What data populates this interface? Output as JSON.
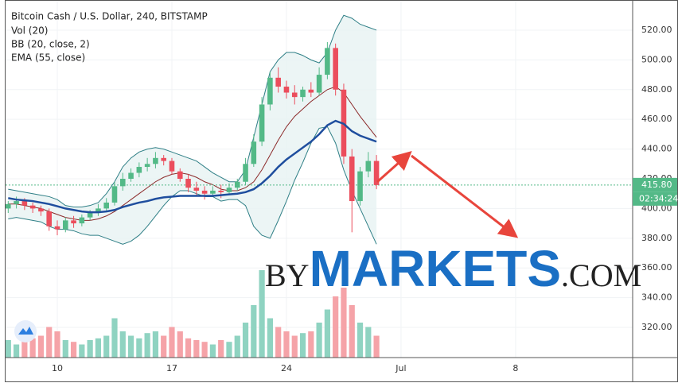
{
  "chart_data": {
    "type": "candlestick",
    "title": "Bitcoin Cash / U.S. Dollar, 240, BITSTAMP",
    "x": [
      7.0,
      7.5,
      8.0,
      8.5,
      9.0,
      9.5,
      10.0,
      10.5,
      11.0,
      11.5,
      12.0,
      12.5,
      13.0,
      13.5,
      14.0,
      14.5,
      15.0,
      15.5,
      16.0,
      16.5,
      17.0,
      17.5,
      18.0,
      18.5,
      19.0,
      19.5,
      20.0,
      20.5,
      21.0,
      21.5,
      22.0,
      22.5,
      23.0,
      23.5,
      24.0,
      24.5,
      25.0,
      25.5,
      26.0,
      26.5,
      27.0,
      27.5,
      28.0,
      28.5,
      29.0,
      29.5
    ],
    "open": [
      400,
      403,
      405,
      402,
      400,
      398,
      388,
      386,
      392,
      390,
      394,
      397,
      400,
      404,
      415,
      420,
      424,
      428,
      430,
      434,
      432,
      425,
      420,
      414,
      412,
      410,
      412,
      411,
      414,
      418,
      430,
      445,
      470,
      488,
      482,
      478,
      475,
      480,
      478,
      490,
      508,
      480,
      435,
      405,
      425,
      432
    ],
    "high": [
      405,
      408,
      407,
      404,
      402,
      400,
      392,
      394,
      395,
      396,
      399,
      403,
      407,
      418,
      424,
      427,
      431,
      434,
      438,
      436,
      434,
      427,
      423,
      418,
      415,
      415,
      416,
      417,
      420,
      434,
      450,
      475,
      492,
      495,
      486,
      483,
      482,
      485,
      495,
      512,
      511,
      484,
      440,
      428,
      438,
      436
    ],
    "low": [
      397,
      400,
      399,
      397,
      395,
      385,
      382,
      384,
      387,
      388,
      392,
      395,
      398,
      402,
      412,
      418,
      421,
      425,
      427,
      429,
      423,
      418,
      411,
      408,
      406,
      408,
      407,
      410,
      412,
      416,
      428,
      442,
      466,
      478,
      474,
      470,
      472,
      475,
      476,
      487,
      476,
      430,
      384,
      402,
      421,
      413
    ],
    "close": [
      403,
      405,
      402,
      400,
      398,
      388,
      386,
      392,
      390,
      394,
      397,
      400,
      404,
      415,
      420,
      424,
      428,
      430,
      434,
      432,
      425,
      420,
      414,
      412,
      410,
      412,
      411,
      414,
      418,
      430,
      445,
      470,
      488,
      482,
      478,
      475,
      480,
      478,
      490,
      508,
      480,
      435,
      405,
      425,
      432,
      415.8
    ],
    "up_color": "#53b987",
    "down_color": "#eb4d5c",
    "volume": {
      "label": "Vol (20)",
      "up_color": "#8fd3c1",
      "down_color": "#f5a3a8",
      "values": [
        20,
        15,
        18,
        22,
        25,
        35,
        30,
        20,
        18,
        15,
        20,
        22,
        25,
        45,
        30,
        25,
        22,
        28,
        30,
        25,
        35,
        30,
        22,
        20,
        18,
        15,
        20,
        18,
        25,
        40,
        60,
        100,
        45,
        35,
        30,
        25,
        28,
        30,
        40,
        55,
        70,
        80,
        60,
        40,
        35,
        25
      ]
    },
    "bb": {
      "label": "BB (20, close, 2)",
      "basis_color": "#8c2a2a",
      "band_color": "#2f7f86",
      "fill_color": "#e7f3f3",
      "basis": [
        403,
        403,
        402,
        401,
        400,
        398,
        396,
        394,
        393,
        392,
        392,
        393,
        395,
        398,
        402,
        406,
        410,
        414,
        418,
        421,
        423,
        424,
        423,
        421,
        418,
        416,
        413,
        412,
        412,
        414,
        418,
        426,
        436,
        446,
        455,
        462,
        467,
        472,
        476,
        480,
        482,
        478,
        470,
        462,
        455,
        448
      ],
      "upper": [
        413,
        412,
        411,
        410,
        409,
        408,
        406,
        402,
        401,
        401,
        402,
        404,
        410,
        418,
        428,
        434,
        438,
        440,
        441,
        440,
        438,
        436,
        434,
        432,
        428,
        424,
        421,
        418,
        418,
        426,
        448,
        470,
        492,
        500,
        505,
        505,
        503,
        500,
        498,
        505,
        520,
        530,
        528,
        524,
        522,
        520
      ],
      "lower": [
        393,
        394,
        393,
        392,
        391,
        388,
        386,
        386,
        385,
        383,
        382,
        382,
        380,
        378,
        376,
        378,
        382,
        388,
        395,
        402,
        408,
        412,
        412,
        410,
        408,
        408,
        405,
        406,
        406,
        402,
        388,
        382,
        380,
        392,
        405,
        419,
        431,
        444,
        454,
        455,
        444,
        426,
        412,
        400,
        388,
        376
      ]
    },
    "ema": {
      "label": "EMA (55, close)",
      "color": "#1f4e9e",
      "values": [
        407,
        406,
        405.5,
        405,
        404,
        403,
        401.5,
        400,
        399,
        398,
        397.5,
        397.5,
        398,
        399,
        401,
        402.5,
        404,
        405,
        406.5,
        407.5,
        408,
        408.5,
        408.5,
        408.5,
        408.5,
        408.5,
        409,
        409.5,
        410,
        411,
        413,
        417,
        422,
        428,
        433,
        437,
        441,
        445,
        450,
        456,
        459,
        457,
        452,
        449,
        447,
        445
      ]
    },
    "last_price": {
      "value": 415.8,
      "label": "415.80"
    },
    "countdown": "02:34:24",
    "xlim": [
      6.84,
      45.15
    ],
    "xticks": [
      10,
      17,
      24,
      {
        "value": 31,
        "label": "Jul"
      },
      {
        "value": 38,
        "label": "8"
      }
    ],
    "ylim": [
      299.7,
      540.3
    ],
    "yticks": [
      {
        "value": 320,
        "label": "320.00"
      },
      {
        "value": 340,
        "label": "340.00"
      },
      {
        "value": 360,
        "label": "360.00"
      },
      {
        "value": 380,
        "label": "380.00"
      },
      {
        "value": 400,
        "label": "400.00"
      },
      {
        "value": 420,
        "label": "420.00"
      },
      {
        "value": 440,
        "label": "440.00"
      },
      {
        "value": 460,
        "label": "460.00"
      },
      {
        "value": 480,
        "label": "480.00"
      },
      {
        "value": 500,
        "label": "500.00"
      },
      {
        "value": 520,
        "label": "520.00"
      }
    ],
    "grid": true,
    "watermark": {
      "prefix": "BY",
      "brand": "MARKETS",
      "suffix": ".COM"
    }
  }
}
